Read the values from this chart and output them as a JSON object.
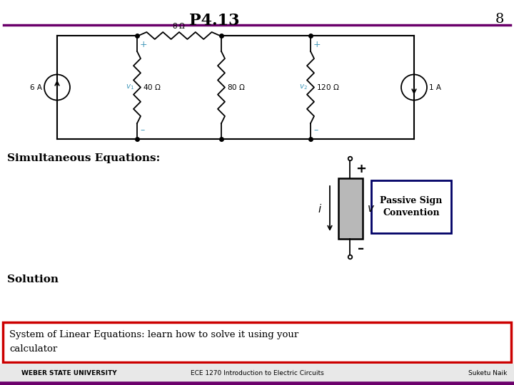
{
  "title": "P4.13",
  "page_num": "8",
  "title_fontsize": 16,
  "page_num_fontsize": 14,
  "bg_color": "#ffffff",
  "purple_line_color": "#6b006b",
  "cyan_color": "#4499bb",
  "simultaneous_eq_text": "Simultaneous Equations:",
  "solution_text": "Solution",
  "passive_sign_text1": "Passive Sign",
  "passive_sign_text2": "Convention",
  "bottom_box_text1": "System of Linear Equations: learn how to solve it using your",
  "bottom_box_text2": "calculator",
  "footer_left": "WEBER STATE UNIVERSITY",
  "footer_center": "ECE 1270 Introduction to Electric Circuits",
  "footer_right": "Suketu Naik",
  "bottom_box_border": "#cc0000",
  "passive_sign_border": "#000066",
  "passive_sign_bg": "#ffffff",
  "footer_bg": "#e8e8e8",
  "footer_purple": "#6b006b"
}
